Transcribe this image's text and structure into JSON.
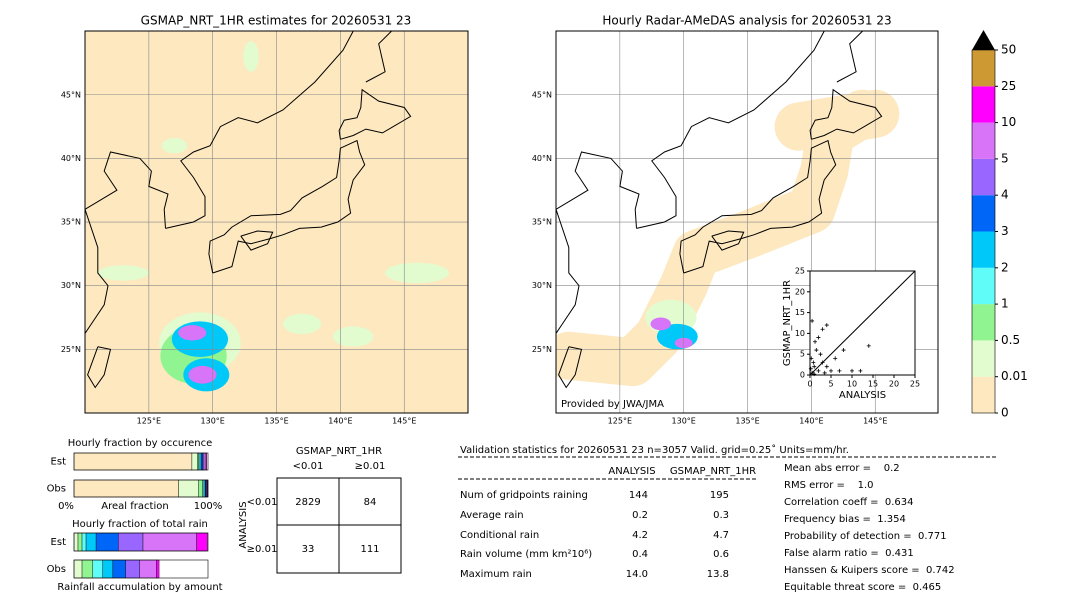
{
  "left_map": {
    "title": "GSMAP_NRT_1HR estimates for 20260531 23",
    "lat_labels": [
      "45°N",
      "40°N",
      "35°N",
      "30°N",
      "25°N"
    ],
    "lon_labels": [
      "125°E",
      "130°E",
      "135°E",
      "140°E",
      "145°E"
    ]
  },
  "right_map": {
    "title": "Hourly Radar-AMeDAS analysis for 20260531 23",
    "lat_labels": [
      "45°N",
      "40°N",
      "35°N",
      "30°N",
      "25°N"
    ],
    "lon_labels": [
      "125°E",
      "130°E",
      "135°E",
      "140°E",
      "145°E"
    ],
    "credit": "Provided by JWA/JMA"
  },
  "scatter": {
    "type": "scatter",
    "xlabel": "ANALYSIS",
    "ylabel": "GSMAP_NRT_1HR",
    "xlim": [
      0,
      25
    ],
    "ylim": [
      0,
      25
    ],
    "xticks": [
      0,
      5,
      10,
      15,
      20,
      25
    ],
    "yticks": [
      0,
      5,
      10,
      15,
      20,
      25
    ],
    "x": [
      0.5,
      1,
      0.3,
      2,
      1.5,
      3,
      4,
      5,
      2,
      3,
      4,
      0.5,
      6,
      8,
      10,
      12,
      14,
      7,
      1,
      2.5,
      0.8,
      1.2,
      3.5,
      0.2
    ],
    "y": [
      0.5,
      2,
      4,
      1,
      6,
      3,
      2,
      1,
      9,
      11,
      12,
      13,
      4,
      6,
      1,
      1,
      7,
      1,
      0.2,
      5,
      3,
      8,
      0.5,
      1.5
    ]
  },
  "colorbar": {
    "ticks": [
      0,
      0.01,
      0.5,
      1,
      2,
      3,
      4,
      5,
      10,
      25,
      50
    ],
    "colors": [
      "#fde8c0",
      "#e2fccf",
      "#90f590",
      "#60fcf8",
      "#00c8f8",
      "#0066f8",
      "#9966ff",
      "#d874f8",
      "#ff00ff",
      "#cc9933"
    ],
    "extend_color": "#000000"
  },
  "occurrence": {
    "title": "Hourly fraction by occurence",
    "rows": [
      "Est",
      "Obs"
    ],
    "xlabel": "Areal fraction",
    "xmin_label": "0%",
    "xmax_label": "100%",
    "fractions": [
      [
        0.88,
        0.04,
        0.01,
        0.01,
        0.01,
        0.01,
        0.01,
        0.015,
        0.005,
        0
      ],
      [
        0.78,
        0.15,
        0.03,
        0.01,
        0.01,
        0.005,
        0.005,
        0.005,
        0.005,
        0
      ]
    ]
  },
  "total_rain": {
    "title": "Hourly fraction of total rain",
    "rows": [
      "Est",
      "Obs"
    ],
    "xlabel": "Rainfall accumulation by amount",
    "fractions": [
      [
        0,
        0.03,
        0.03,
        0.03,
        0.075,
        0.165,
        0.185,
        0.4,
        0.08,
        0
      ],
      [
        0,
        0.06,
        0.08,
        0.075,
        0.075,
        0.095,
        0.105,
        0.125,
        0.02,
        0
      ]
    ]
  },
  "contingency": {
    "title": "GSMAP_NRT_1HR",
    "columns": [
      "<0.01",
      "≥0.01"
    ],
    "ylabel": "ANALYSIS",
    "rows": [
      "<0.01",
      "≥0.01"
    ],
    "cells": [
      [
        "2829",
        "84"
      ],
      [
        "33",
        "111"
      ]
    ]
  },
  "validation": {
    "header": "Validation statistics for 20260531 23  n=3057 Valid. grid=0.25˚ Units=mm/hr.",
    "columns": [
      "ANALYSIS",
      "GSMAP_NRT_1HR"
    ],
    "rows": [
      [
        "Num of gridpoints raining",
        "144",
        "195"
      ],
      [
        "Average rain",
        "0.2",
        "0.3"
      ],
      [
        "Conditional rain",
        "4.2",
        "4.7"
      ],
      [
        "Rain volume (mm km²10⁶)",
        "0.4",
        "0.6"
      ],
      [
        "Maximum rain",
        "14.0",
        "13.8"
      ]
    ],
    "scores": [
      "Mean abs error =    0.2",
      "RMS error =    1.0",
      "Correlation coeff =  0.634",
      "Frequency bias =  1.354",
      "Probability of detection =  0.771",
      "False alarm ratio =  0.431",
      "Hanssen & Kuipers score =  0.742",
      "Equitable threat score =  0.465"
    ]
  }
}
